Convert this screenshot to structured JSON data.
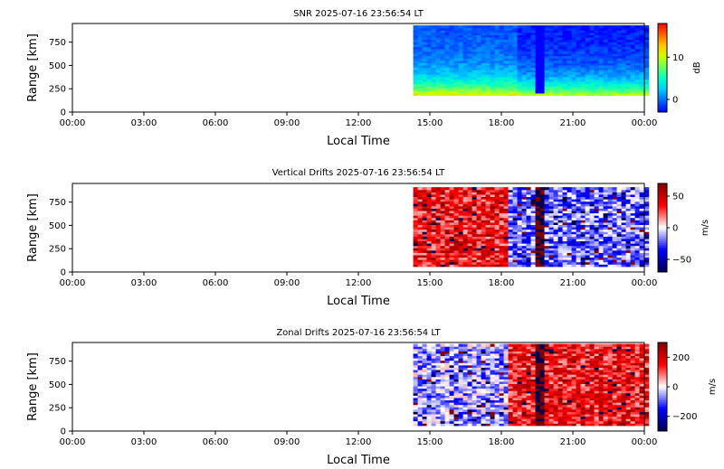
{
  "colors": {
    "snr_scale": [
      "#0000ff",
      "#0064ff",
      "#00c8ff",
      "#00ffc8",
      "#64ff64",
      "#c8ff00",
      "#ffc800",
      "#ff6400",
      "#ff0000"
    ],
    "drift_scale": [
      "#00004c",
      "#0000ff",
      "#ffffff",
      "#ff0000",
      "#7f0000"
    ]
  },
  "x_ticks": [
    "00:00",
    "03:00",
    "06:00",
    "09:00",
    "12:00",
    "15:00",
    "18:00",
    "21:00",
    "00:00"
  ],
  "y_ticks": [
    "0",
    "250",
    "500",
    "750"
  ],
  "chart_data": [
    {
      "type": "heatmap",
      "title": "SNR 2025-07-16 23:56:54 LT",
      "xlabel": "Local Time",
      "ylabel": "Range [km]",
      "xlim_hours": [
        0,
        24
      ],
      "ylim_km": [
        0,
        950
      ],
      "data_start_hour": 14.3,
      "data_range_km": [
        180,
        930
      ],
      "colorbar": {
        "label": "dB",
        "range": [
          -3,
          18
        ],
        "ticks": [
          "0",
          "10"
        ],
        "scale": "snr"
      },
      "description_values": {
        "low_range_snr_dB": 12,
        "mid_range_snr_dB": 2,
        "high_range_snr_dB": -1
      }
    },
    {
      "type": "heatmap",
      "title": "Vertical Drifts 2025-07-16 23:56:54 LT",
      "xlabel": "Local Time",
      "ylabel": "Range [km]",
      "xlim_hours": [
        0,
        24
      ],
      "ylim_km": [
        0,
        950
      ],
      "data_start_hour": 14.3,
      "data_range_km": [
        60,
        900
      ],
      "colorbar": {
        "label": "m/s",
        "range": [
          -70,
          70
        ],
        "ticks": [
          "50",
          "0",
          "−50"
        ],
        "scale": "drift"
      },
      "description_values": {
        "afternoon_drift_ms": 35,
        "evening_drift_ms": -20
      }
    },
    {
      "type": "heatmap",
      "title": "Zonal Drifts 2025-07-16 23:56:54 LT",
      "xlabel": "Local Time",
      "ylabel": "Range [km]",
      "xlim_hours": [
        0,
        24
      ],
      "ylim_km": [
        0,
        950
      ],
      "data_start_hour": 14.3,
      "data_range_km": [
        60,
        930
      ],
      "colorbar": {
        "label": "m/s",
        "range": [
          -300,
          300
        ],
        "ticks": [
          "200",
          "0",
          "−200"
        ],
        "scale": "drift"
      },
      "description_values": {
        "afternoon_drift_ms": -60,
        "evening_drift_ms": 150
      }
    }
  ]
}
